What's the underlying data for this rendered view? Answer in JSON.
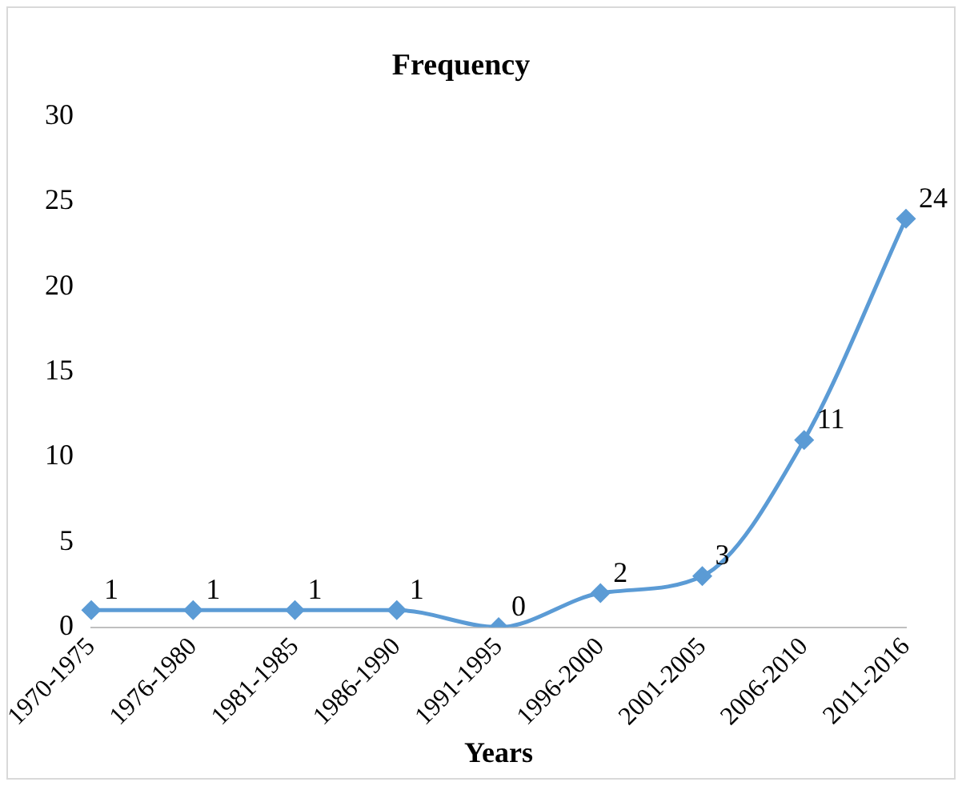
{
  "chart_data": {
    "type": "line",
    "title": "Frequency",
    "xlabel": "Years",
    "categories": [
      "1970-1975",
      "1976-1980",
      "1981-1985",
      "1986-1990",
      "1991-1995",
      "1996-2000",
      "2001-2005",
      "2006-2010",
      "2011-2016"
    ],
    "series": [
      {
        "color": "#5b9bd5",
        "values": [
          1,
          1,
          1,
          1,
          0,
          2,
          3,
          11,
          24
        ]
      }
    ],
    "ylim": [
      0,
      30
    ],
    "yticks": [
      0,
      5,
      10,
      15,
      20,
      25,
      30
    ],
    "grid": false,
    "legend": false,
    "marker": "diamond",
    "line_style": "solid",
    "data_labels": true
  }
}
